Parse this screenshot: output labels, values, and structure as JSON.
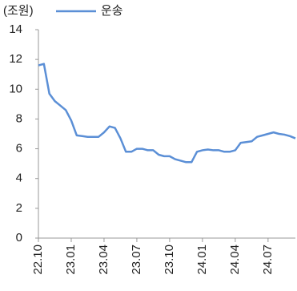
{
  "chart_data": {
    "type": "line",
    "unit_label": "(조원)",
    "categories": [
      "22.10",
      null,
      null,
      null,
      null,
      null,
      "23.01",
      null,
      null,
      null,
      null,
      null,
      "23.04",
      null,
      null,
      null,
      null,
      null,
      "23.07",
      null,
      null,
      null,
      null,
      null,
      "23.10",
      null,
      null,
      null,
      null,
      null,
      "24.01",
      null,
      null,
      null,
      null,
      null,
      "24.04",
      null,
      null,
      null,
      null,
      null,
      "24.07",
      null,
      null,
      null,
      null,
      null
    ],
    "series": [
      {
        "name": "운송",
        "color": "#5b8fd6",
        "values": [
          11.6,
          11.7,
          9.7,
          9.2,
          8.9,
          8.6,
          7.9,
          6.9,
          6.85,
          6.8,
          6.8,
          6.8,
          7.1,
          7.5,
          7.4,
          6.7,
          5.8,
          5.8,
          6.0,
          6.0,
          5.9,
          5.9,
          5.6,
          5.5,
          5.5,
          5.3,
          5.2,
          5.1,
          5.1,
          5.8,
          5.9,
          5.95,
          5.9,
          5.9,
          5.8,
          5.8,
          5.9,
          6.4,
          6.45,
          6.5,
          6.8,
          6.9,
          7.0,
          7.1,
          7.0,
          6.95,
          6.85,
          6.7
        ]
      }
    ],
    "ylim": [
      0,
      14
    ],
    "yticks": [
      0,
      2,
      4,
      6,
      8,
      10,
      12,
      14
    ],
    "grid": false,
    "legend": "top"
  }
}
